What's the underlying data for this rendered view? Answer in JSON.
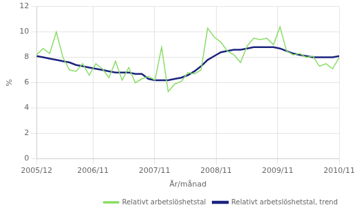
{
  "chart_data": {
    "type": "line",
    "xlabel": "År/månad",
    "ylabel": "%",
    "x": [
      0,
      1,
      2,
      3,
      4,
      5,
      6,
      7,
      8,
      9,
      10,
      11,
      12,
      13,
      14,
      15,
      16,
      17,
      18,
      19,
      20,
      21,
      22,
      23,
      24,
      25,
      26,
      27,
      28,
      29,
      30,
      31,
      32,
      33,
      34,
      35,
      36,
      37,
      38,
      39,
      40,
      41,
      42,
      43,
      44,
      45,
      46
    ],
    "xlim": [
      0,
      46
    ],
    "xticks": [
      {
        "value": 0,
        "label": "2005/12"
      },
      {
        "value": 8.576271186440678,
        "label": "2006/11"
      },
      {
        "value": 17.93220338983051,
        "label": "2007/11"
      },
      {
        "value": 27.28813559322034,
        "label": "2008/11"
      },
      {
        "value": 36.64406779661017,
        "label": "2009/11"
      },
      {
        "value": 46,
        "label": "2010/11"
      }
    ],
    "ylim": [
      0,
      12
    ],
    "yticks": [
      0,
      2,
      4,
      6,
      8,
      10,
      12
    ],
    "grid": true,
    "legend": "lower right",
    "series": [
      {
        "name": "Relativt arbetslöshetstal",
        "color": "#88dd66",
        "values": [
          8.2,
          8.7,
          8.3,
          10.0,
          8.0,
          7.0,
          6.9,
          7.5,
          6.6,
          7.5,
          7.1,
          6.4,
          7.7,
          6.2,
          7.2,
          6.0,
          6.3,
          6.5,
          6.2,
          8.8,
          5.3,
          5.9,
          6.1,
          6.8,
          6.7,
          7.0,
          10.3,
          9.6,
          9.2,
          8.5,
          8.2,
          7.6,
          8.9,
          9.5,
          9.4,
          9.5,
          9.0,
          10.4,
          8.5,
          8.2,
          8.3,
          8.0,
          8.1,
          7.3,
          7.5,
          7.1,
          8.0
        ]
      },
      {
        "name": "Relativt arbetslöshetstal, trend",
        "color": "#1a237e",
        "values": [
          8.1,
          8.0,
          7.9,
          7.8,
          7.7,
          7.6,
          7.4,
          7.3,
          7.2,
          7.1,
          7.0,
          6.9,
          6.8,
          6.8,
          6.8,
          6.7,
          6.7,
          6.3,
          6.2,
          6.2,
          6.2,
          6.3,
          6.4,
          6.6,
          6.9,
          7.3,
          7.8,
          8.1,
          8.4,
          8.5,
          8.6,
          8.6,
          8.7,
          8.8,
          8.8,
          8.8,
          8.8,
          8.7,
          8.5,
          8.3,
          8.2,
          8.1,
          8.0,
          8.0,
          8.0,
          8.0,
          8.1
        ]
      }
    ]
  }
}
